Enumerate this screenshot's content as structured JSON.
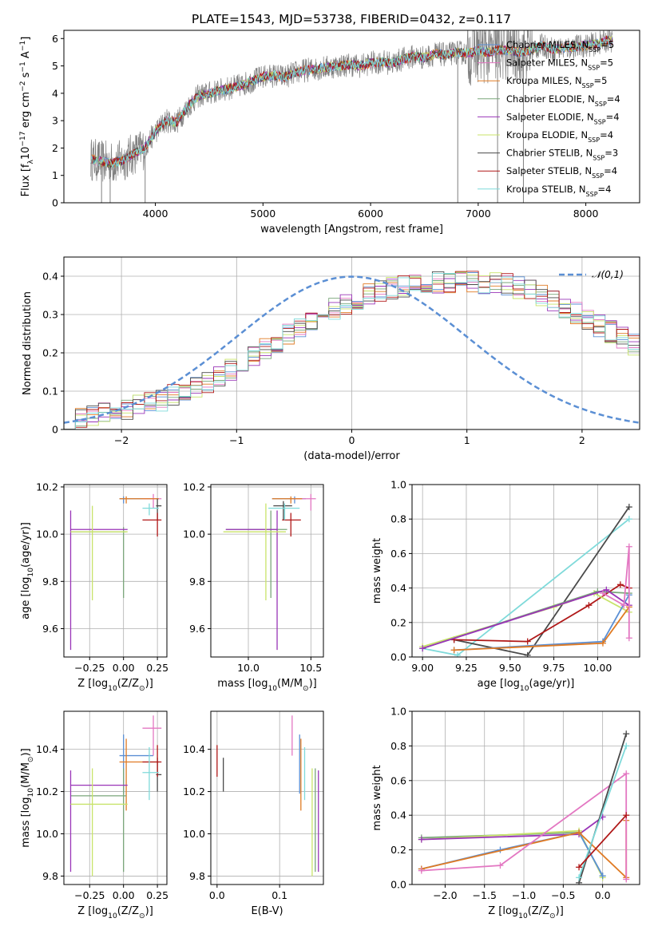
{
  "figure_title": "PLATE=1543, MJD=53738, FIBERID=0432, z=0.117",
  "colors": [
    "#5b8fd4",
    "#e377c2",
    "#e07b24",
    "#7aa67a",
    "#9a35b8",
    "#c8e36a",
    "#4a4a4a",
    "#b01818",
    "#7fdada"
  ],
  "chart_data": [
    {
      "id": "spectrum",
      "type": "line",
      "title": "PLATE=1543, MJD=53738, FIBERID=0432, z=0.117",
      "xlabel": "wavelength [Angstrom, rest frame]",
      "ylabel": "Flux [f$_\\lambda$10$^{-17}$ erg cm$^{-2}$ s$^{-1}$ A$^{-1}$]",
      "xlim": [
        3150,
        8500
      ],
      "ylim": [
        0,
        6.3
      ],
      "xticks": [
        4000,
        5000,
        6000,
        7000,
        8000
      ],
      "yticks": [
        0,
        1,
        2,
        3,
        4,
        5,
        6
      ],
      "grid": false,
      "legend_position": "top-right",
      "observed_color": "#808080",
      "continuum": {
        "x": [
          3400,
          3500,
          3600,
          3700,
          3800,
          3900,
          4000,
          4100,
          4200,
          4300,
          4400,
          4500,
          4600,
          4700,
          4800,
          4900,
          5000,
          5100,
          5200,
          5300,
          5400,
          5500,
          5600,
          5700,
          5800,
          5900,
          6000,
          6100,
          6200,
          6300,
          6400,
          6500,
          6600,
          6700,
          6800,
          6900,
          7000,
          7100,
          7200,
          7300,
          7400,
          7500,
          7600,
          7700,
          7800,
          7900,
          8000,
          8100,
          8200,
          8250
        ],
        "y": [
          1.6,
          1.5,
          1.45,
          1.55,
          1.8,
          2.0,
          2.6,
          3.0,
          2.95,
          3.5,
          3.9,
          4.0,
          4.1,
          4.2,
          4.3,
          4.45,
          4.6,
          4.65,
          4.6,
          4.75,
          4.85,
          4.9,
          4.95,
          5.0,
          5.05,
          5.0,
          5.1,
          5.15,
          5.1,
          5.25,
          5.35,
          5.3,
          5.45,
          5.4,
          5.5,
          5.45,
          5.55,
          5.5,
          5.6,
          5.55,
          5.5,
          5.6,
          5.75,
          5.6,
          5.65,
          5.7,
          5.75,
          5.8,
          5.95,
          5.9
        ]
      },
      "series": [
        {
          "name": "Chabrier MILES, N$_{SSP}$=5",
          "color": "#5b8fd4"
        },
        {
          "name": "Salpeter MILES, N$_{SSP}$=5",
          "color": "#e377c2"
        },
        {
          "name": "Kroupa MILES, N$_{SSP}$=5",
          "color": "#e07b24"
        },
        {
          "name": "Chabrier ELODIE, N$_{SSP}$=4",
          "color": "#7aa67a"
        },
        {
          "name": "Salpeter ELODIE, N$_{SSP}$=4",
          "color": "#9a35b8"
        },
        {
          "name": "Kroupa ELODIE, N$_{SSP}$=4",
          "color": "#c8e36a"
        },
        {
          "name": "Chabrier STELIB, N$_{SSP}$=3",
          "color": "#4a4a4a"
        },
        {
          "name": "Salpeter STELIB, N$_{SSP}$=4",
          "color": "#b01818"
        },
        {
          "name": "Kroupa STELIB, N$_{SSP}$=4",
          "color": "#7fdada"
        }
      ]
    },
    {
      "id": "residuals",
      "type": "bar",
      "xlabel": "(data-model)/error",
      "ylabel": "Normed distribution",
      "xlim": [
        -2.5,
        2.5
      ],
      "ylim": [
        0,
        0.45
      ],
      "xticks": [
        -2,
        -1,
        0,
        1,
        2
      ],
      "yticks": [
        0.0,
        0.1,
        0.2,
        0.3,
        0.4
      ],
      "grid": true,
      "legend_position": "top-right",
      "bin_edges_start": -2.5,
      "bin_width": 0.1,
      "base_histogram": [
        0.03,
        0.032,
        0.036,
        0.04,
        0.045,
        0.052,
        0.06,
        0.068,
        0.078,
        0.088,
        0.1,
        0.112,
        0.125,
        0.14,
        0.156,
        0.172,
        0.19,
        0.21,
        0.23,
        0.25,
        0.268,
        0.285,
        0.3,
        0.315,
        0.33,
        0.34,
        0.35,
        0.36,
        0.37,
        0.375,
        0.38,
        0.382,
        0.384,
        0.385,
        0.386,
        0.385,
        0.384,
        0.382,
        0.378,
        0.37,
        0.36,
        0.348,
        0.335,
        0.32,
        0.305,
        0.29,
        0.272,
        0.255,
        0.238,
        0.22,
        0.2,
        0.185,
        0.17,
        0.155,
        0.14,
        0.126,
        0.114,
        0.103,
        0.092,
        0.083,
        0.075,
        0.068,
        0.062,
        0.056,
        0.05,
        0.046,
        0.042,
        0.038,
        0.035,
        0.032
      ],
      "gaussian": {
        "name": "$\\mathcal{N}(0,1)$",
        "color": "#5b8fd4",
        "mean": 0,
        "sigma": 1
      }
    },
    {
      "id": "age-Z",
      "type": "scatter",
      "xlabel": "Z [log$_{10}$(Z/Z$_\\odot$)]",
      "ylabel": "age  [log$_{10}$(age/yr)]",
      "xlim": [
        -0.44,
        0.32
      ],
      "ylim": [
        9.48,
        10.21
      ],
      "xticks": [
        -0.25,
        0.0,
        0.25
      ],
      "xtick_labels": [
        "−0.25",
        "0.00",
        "0.25"
      ],
      "yticks": [
        9.6,
        9.8,
        10.0,
        10.2
      ],
      "ytick_labels": [
        "9.6",
        "9.8",
        "10.0",
        "10.2"
      ],
      "grid": true,
      "errorbars": [
        {
          "color": "#5b8fd4",
          "x": 0.0,
          "xlo": -0.03,
          "xhi": 0.22,
          "y": 10.15,
          "ylo": 10.13,
          "yhi": 10.16
        },
        {
          "color": "#e377c2",
          "x": 0.22,
          "xlo": 0.14,
          "xhi": 0.28,
          "y": 10.15,
          "ylo": 10.11,
          "yhi": 10.17
        },
        {
          "color": "#e07b24",
          "x": 0.02,
          "xlo": -0.03,
          "xhi": 0.26,
          "y": 10.15,
          "ylo": 10.13,
          "yhi": 10.16
        },
        {
          "color": "#7aa67a",
          "x": 0.0,
          "xlo": -0.39,
          "xhi": 0.02,
          "y": 10.01,
          "ylo": 9.73,
          "yhi": 10.03
        },
        {
          "color": "#9a35b8",
          "x": -0.39,
          "xlo": -0.39,
          "xhi": 0.03,
          "y": 10.02,
          "ylo": 9.51,
          "yhi": 10.1
        },
        {
          "color": "#c8e36a",
          "x": -0.23,
          "xlo": -0.39,
          "xhi": 0.03,
          "y": 10.01,
          "ylo": 9.72,
          "yhi": 10.12
        },
        {
          "color": "#4a4a4a",
          "x": 0.25,
          "xlo": 0.24,
          "xhi": 0.28,
          "y": 10.12,
          "ylo": 10.06,
          "yhi": 10.15
        },
        {
          "color": "#b01818",
          "x": 0.25,
          "xlo": 0.14,
          "xhi": 0.28,
          "y": 10.06,
          "ylo": 9.99,
          "yhi": 10.09
        },
        {
          "color": "#7fdada",
          "x": 0.19,
          "xlo": 0.14,
          "xhi": 0.26,
          "y": 10.11,
          "ylo": 10.08,
          "yhi": 10.13
        }
      ]
    },
    {
      "id": "age-mass",
      "type": "scatter",
      "xlabel": "mass [log$_{10}$(M/M$_\\odot$)]",
      "ylabel": "",
      "xlim": [
        9.7,
        10.6
      ],
      "ylim": [
        9.48,
        10.21
      ],
      "xticks": [
        10.0,
        10.5
      ],
      "xtick_labels": [
        "10.0",
        "10.5"
      ],
      "yticks": [
        9.6,
        9.8,
        10.0,
        10.2
      ],
      "ytick_labels": [
        "9.6",
        "9.8",
        "10.0",
        "10.2"
      ],
      "grid": true,
      "errorbars": [
        {
          "color": "#5b8fd4",
          "x": 10.37,
          "xlo": 10.19,
          "xhi": 10.46,
          "y": 10.15,
          "ylo": 10.13,
          "yhi": 10.16
        },
        {
          "color": "#e377c2",
          "x": 10.5,
          "xlo": 10.36,
          "xhi": 10.54,
          "y": 10.15,
          "ylo": 10.1,
          "yhi": 10.17
        },
        {
          "color": "#e07b24",
          "x": 10.34,
          "xlo": 10.19,
          "xhi": 10.43,
          "y": 10.15,
          "ylo": 10.13,
          "yhi": 10.16
        },
        {
          "color": "#7aa67a",
          "x": 10.18,
          "xlo": 9.82,
          "xhi": 10.31,
          "y": 10.02,
          "ylo": 9.73,
          "yhi": 10.1
        },
        {
          "color": "#9a35b8",
          "x": 10.23,
          "xlo": 9.82,
          "xhi": 10.23,
          "y": 10.02,
          "ylo": 9.51,
          "yhi": 10.1
        },
        {
          "color": "#c8e36a",
          "x": 10.14,
          "xlo": 9.8,
          "xhi": 10.3,
          "y": 10.01,
          "ylo": 9.72,
          "yhi": 10.13
        },
        {
          "color": "#4a4a4a",
          "x": 10.28,
          "xlo": 10.2,
          "xhi": 10.35,
          "y": 10.12,
          "ylo": 10.06,
          "yhi": 10.14
        },
        {
          "color": "#b01818",
          "x": 10.34,
          "xlo": 10.27,
          "xhi": 10.42,
          "y": 10.06,
          "ylo": 9.99,
          "yhi": 10.09
        },
        {
          "color": "#7fdada",
          "x": 10.29,
          "xlo": 10.16,
          "xhi": 10.41,
          "y": 10.11,
          "ylo": 10.06,
          "yhi": 10.13
        }
      ]
    },
    {
      "id": "weight-age",
      "type": "line",
      "xlabel": "age  [log$_{10}$(age/yr)]",
      "ylabel": "mass weight",
      "xlim": [
        8.94,
        10.24
      ],
      "ylim": [
        0,
        1.0
      ],
      "xticks": [
        9.0,
        9.25,
        9.5,
        9.75,
        10.0
      ],
      "xtick_labels": [
        "9.00",
        "9.25",
        "9.50",
        "9.75",
        "10.00"
      ],
      "yticks": [
        0.0,
        0.2,
        0.4,
        0.6,
        0.8,
        1.0
      ],
      "ytick_labels": [
        "0.0",
        "0.2",
        "0.4",
        "0.6",
        "0.8",
        "1.0"
      ],
      "grid": true,
      "series": [
        {
          "color": "#7fdada",
          "x": [
            9.0,
            9.2,
            10.18
          ],
          "y": [
            0.05,
            0.01,
            0.8
          ]
        },
        {
          "color": "#4a4a4a",
          "x": [
            9.18,
            9.6,
            10.18
          ],
          "y": [
            0.1,
            0.01,
            0.87
          ]
        },
        {
          "color": "#b01818",
          "x": [
            9.18,
            9.6,
            9.95,
            10.13,
            10.18
          ],
          "y": [
            0.1,
            0.09,
            0.3,
            0.42,
            0.4
          ]
        },
        {
          "color": "#c8e36a",
          "x": [
            9.0,
            9.75,
            9.98,
            10.18
          ],
          "y": [
            0.06,
            0.29,
            0.37,
            0.26
          ]
        },
        {
          "color": "#7aa67a",
          "x": [
            9.0,
            10.0,
            10.18
          ],
          "y": [
            0.05,
            0.38,
            0.37
          ]
        },
        {
          "color": "#9a35b8",
          "x": [
            9.0,
            10.05,
            10.18
          ],
          "y": [
            0.05,
            0.39,
            0.3
          ]
        },
        {
          "color": "#5b8fd4",
          "x": [
            9.18,
            10.03,
            10.18
          ],
          "y": [
            0.04,
            0.09,
            0.36
          ]
        },
        {
          "color": "#e07b24",
          "x": [
            9.18,
            10.03,
            10.18
          ],
          "y": [
            0.04,
            0.08,
            0.29
          ]
        },
        {
          "color": "#e377c2",
          "x": [
            10.03,
            10.15,
            10.18,
            10.18
          ],
          "y": [
            0.37,
            0.3,
            0.64,
            0.11
          ]
        }
      ]
    },
    {
      "id": "mass-Z",
      "type": "scatter",
      "xlabel": "Z [log$_{10}$(Z/Z$_\\odot$)]",
      "ylabel": "mass [log$_{10}$(M/M$_\\odot$)]",
      "xlim": [
        -0.44,
        0.32
      ],
      "ylim": [
        9.76,
        10.58
      ],
      "xticks": [
        -0.25,
        0.0,
        0.25
      ],
      "xtick_labels": [
        "−0.25",
        "0.00",
        "0.25"
      ],
      "yticks": [
        9.8,
        10.0,
        10.2,
        10.4
      ],
      "ytick_labels": [
        "9.8",
        "10.0",
        "10.2",
        "10.4"
      ],
      "grid": true,
      "errorbars": [
        {
          "color": "#5b8fd4",
          "x": 0.0,
          "xlo": -0.03,
          "xhi": 0.22,
          "y": 10.37,
          "ylo": 10.19,
          "yhi": 10.47
        },
        {
          "color": "#e377c2",
          "x": 0.22,
          "xlo": 0.14,
          "xhi": 0.28,
          "y": 10.5,
          "ylo": 10.37,
          "yhi": 10.56
        },
        {
          "color": "#e07b24",
          "x": 0.02,
          "xlo": -0.03,
          "xhi": 0.26,
          "y": 10.34,
          "ylo": 10.11,
          "yhi": 10.45
        },
        {
          "color": "#7aa67a",
          "x": 0.0,
          "xlo": -0.39,
          "xhi": 0.02,
          "y": 10.18,
          "ylo": 9.82,
          "yhi": 10.31
        },
        {
          "color": "#9a35b8",
          "x": -0.39,
          "xlo": -0.39,
          "xhi": 0.03,
          "y": 10.23,
          "ylo": 9.82,
          "yhi": 10.3
        },
        {
          "color": "#c8e36a",
          "x": -0.23,
          "xlo": -0.39,
          "xhi": 0.03,
          "y": 10.14,
          "ylo": 9.8,
          "yhi": 10.31
        },
        {
          "color": "#4a4a4a",
          "x": 0.25,
          "xlo": 0.24,
          "xhi": 0.28,
          "y": 10.28,
          "ylo": 10.2,
          "yhi": 10.36
        },
        {
          "color": "#b01818",
          "x": 0.25,
          "xlo": 0.14,
          "xhi": 0.28,
          "y": 10.34,
          "ylo": 10.27,
          "yhi": 10.42
        },
        {
          "color": "#7fdada",
          "x": 0.19,
          "xlo": 0.14,
          "xhi": 0.26,
          "y": 10.29,
          "ylo": 10.16,
          "yhi": 10.41
        }
      ]
    },
    {
      "id": "mass-EBV",
      "type": "scatter",
      "xlabel": "E(B-V)",
      "ylabel": "",
      "xlim": [
        -0.01,
        0.17
      ],
      "ylim": [
        9.76,
        10.58
      ],
      "xticks": [
        0.0,
        0.1
      ],
      "xtick_labels": [
        "0.0",
        "0.1"
      ],
      "yticks": [
        9.8,
        10.0,
        10.2,
        10.4
      ],
      "ytick_labels": [
        "9.8",
        "10.0",
        "10.2",
        "10.4"
      ],
      "grid": true,
      "errorbars": [
        {
          "color": "#e377c2",
          "x": 0.12,
          "ylo": 10.37,
          "yhi": 10.56
        },
        {
          "color": "#5b8fd4",
          "x": 0.132,
          "ylo": 10.19,
          "yhi": 10.47
        },
        {
          "color": "#e07b24",
          "x": 0.134,
          "ylo": 10.11,
          "yhi": 10.45
        },
        {
          "color": "#7fdada",
          "x": 0.14,
          "ylo": 10.16,
          "yhi": 10.41
        },
        {
          "color": "#c8e36a",
          "x": 0.152,
          "ylo": 9.8,
          "yhi": 10.31
        },
        {
          "color": "#7aa67a",
          "x": 0.157,
          "ylo": 9.82,
          "yhi": 10.31
        },
        {
          "color": "#9a35b8",
          "x": 0.162,
          "ylo": 9.82,
          "yhi": 10.3
        },
        {
          "color": "#b01818",
          "x": 0.0,
          "ylo": 10.27,
          "yhi": 10.42
        },
        {
          "color": "#4a4a4a",
          "x": 0.01,
          "ylo": 10.2,
          "yhi": 10.36
        }
      ]
    },
    {
      "id": "weight-Z",
      "type": "line",
      "xlabel": "Z [log$_{10}$(Z/Z$_\\odot$)]",
      "ylabel": "mass weight",
      "xlim": [
        -2.42,
        0.47
      ],
      "ylim": [
        0,
        1.0
      ],
      "xticks": [
        -2.0,
        -1.5,
        -1.0,
        -0.5,
        0.0
      ],
      "xtick_labels": [
        "−2.0",
        "−1.5",
        "−1.0",
        "−0.5",
        "0.0"
      ],
      "yticks": [
        0.0,
        0.2,
        0.4,
        0.6,
        0.8,
        1.0
      ],
      "ytick_labels": [
        "0.0",
        "0.2",
        "0.4",
        "0.6",
        "0.8",
        "1.0"
      ],
      "grid": true,
      "series": [
        {
          "color": "#7aa67a",
          "x": [
            -2.3,
            -0.3,
            0.0
          ],
          "y": [
            0.27,
            0.3,
            0.05
          ]
        },
        {
          "color": "#c8e36a",
          "x": [
            -2.3,
            -0.3,
            0.0
          ],
          "y": [
            0.26,
            0.31,
            0.04
          ]
        },
        {
          "color": "#9a35b8",
          "x": [
            -2.3,
            -0.3,
            0.0
          ],
          "y": [
            0.26,
            0.29,
            0.39
          ]
        },
        {
          "color": "#5b8fd4",
          "x": [
            -2.3,
            -1.3,
            -0.3,
            0.0
          ],
          "y": [
            0.09,
            0.2,
            0.3,
            0.05
          ]
        },
        {
          "color": "#e07b24",
          "x": [
            -2.3,
            -0.3,
            0.3,
            0.3
          ],
          "y": [
            0.09,
            0.3,
            0.04,
            0.37
          ]
        },
        {
          "color": "#e377c2",
          "x": [
            -2.3,
            -1.3,
            0.3,
            0.3
          ],
          "y": [
            0.08,
            0.11,
            0.64,
            0.03
          ]
        },
        {
          "color": "#4a4a4a",
          "x": [
            -0.3,
            0.3
          ],
          "y": [
            0.01,
            0.87
          ]
        },
        {
          "color": "#7fdada",
          "x": [
            -0.3,
            0.3
          ],
          "y": [
            0.04,
            0.8
          ]
        },
        {
          "color": "#b01818",
          "x": [
            -0.3,
            0.3
          ],
          "y": [
            0.1,
            0.4
          ]
        }
      ]
    }
  ]
}
